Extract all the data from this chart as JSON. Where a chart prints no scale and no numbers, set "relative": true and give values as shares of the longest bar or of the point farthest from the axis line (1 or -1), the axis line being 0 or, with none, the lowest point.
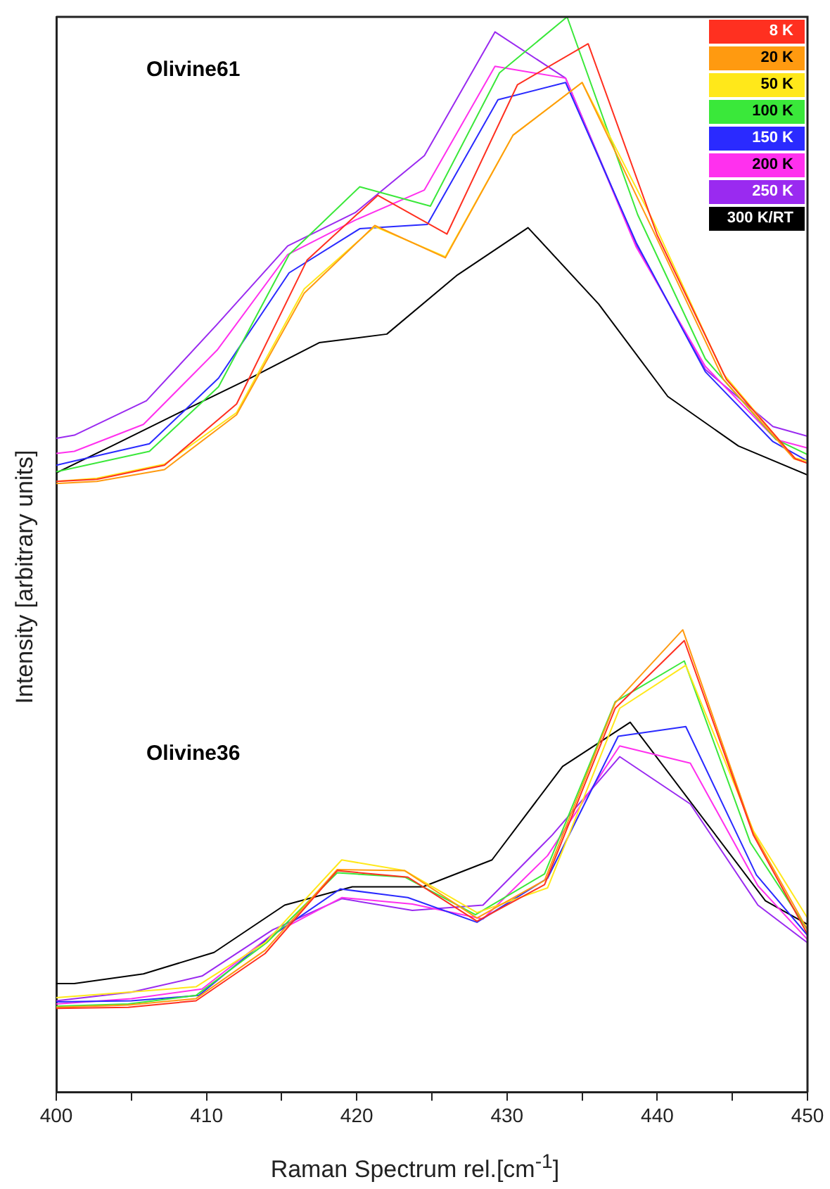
{
  "chart_data": {
    "type": "line",
    "relative": true,
    "xlabel": "Raman Spectrum rel.[cm$^{-1}$]",
    "ylabel": "Intensity [arbitrary units]",
    "xlim": [
      400,
      450
    ],
    "xticks": [
      400,
      {
        "value": 405,
        "label": null
      },
      410,
      {
        "value": 415,
        "label": null
      },
      420,
      {
        "value": 425,
        "label": null
      },
      430,
      {
        "value": 435,
        "label": null
      },
      440,
      {
        "value": 445,
        "label": null
      },
      450
    ],
    "legend": "top right",
    "grid": false,
    "marker": "none",
    "line_style": "solid",
    "annotations": [
      "Olivine61",
      "Olivine36"
    ],
    "series": [
      {
        "name": "8 K",
        "color": "#ff3020",
        "x": [
          400,
          402.7,
          407.2,
          412.0,
          416.7,
          421.4,
          426.0,
          430.7,
          435.4,
          440.0,
          444.6,
          449.2,
          450
        ],
        "values": [
          0.568,
          0.57,
          0.583,
          0.64,
          0.774,
          0.834,
          0.798,
          0.937,
          0.975,
          0.797,
          0.663,
          0.589,
          0.585
        ]
      },
      {
        "name": "20 K",
        "color": "#ff9a10",
        "x": [
          400,
          402.7,
          407.2,
          412.0,
          416.5,
          421.2,
          425.9,
          430.4,
          435.0,
          439.7,
          444.4,
          449.1,
          450
        ],
        "values": [
          0.566,
          0.568,
          0.579,
          0.63,
          0.743,
          0.806,
          0.776,
          0.89,
          0.939,
          0.802,
          0.663,
          0.589,
          0.585
        ]
      },
      {
        "name": "50 K",
        "color": "#ffe81a",
        "x": [
          400,
          402.7,
          407.2,
          412.0,
          416.5,
          421.2,
          425.9,
          430.4,
          435.0,
          439.7,
          444.4,
          449.1,
          450
        ],
        "values": [
          0.568,
          0.571,
          0.584,
          0.632,
          0.747,
          0.805,
          0.777,
          0.89,
          0.939,
          0.811,
          0.668,
          0.59,
          0.587
        ]
      },
      {
        "name": "100 K",
        "color": "#3ae83a",
        "x": [
          400,
          406.2,
          410.8,
          415.5,
          420.2,
          424.9,
          429.5,
          434.0,
          438.7,
          443.2,
          447.9,
          450
        ],
        "values": [
          0.577,
          0.596,
          0.656,
          0.779,
          0.842,
          0.824,
          0.948,
          1.0,
          0.816,
          0.682,
          0.607,
          0.593
        ]
      },
      {
        "name": "150 K",
        "color": "#2a2aff",
        "x": [
          400,
          401.2,
          406.2,
          410.8,
          415.5,
          420.2,
          424.7,
          429.4,
          433.9,
          438.6,
          443.2,
          447.7,
          450
        ],
        "values": [
          0.583,
          0.587,
          0.603,
          0.664,
          0.762,
          0.803,
          0.807,
          0.923,
          0.939,
          0.79,
          0.67,
          0.605,
          0.587
        ]
      },
      {
        "name": "200 K",
        "color": "#ff30ee",
        "x": [
          400,
          401.2,
          405.8,
          410.7,
          415.4,
          419.9,
          424.5,
          429.2,
          433.9,
          438.6,
          443.2,
          447.9,
          450
        ],
        "values": [
          0.594,
          0.596,
          0.621,
          0.69,
          0.779,
          0.811,
          0.839,
          0.954,
          0.943,
          0.786,
          0.675,
          0.607,
          0.599
        ]
      },
      {
        "name": "250 K",
        "color": "#9a2af0",
        "x": [
          400,
          401.2,
          406.0,
          410.7,
          415.4,
          419.9,
          424.5,
          429.2,
          433.9,
          438.6,
          443.2,
          447.7,
          450
        ],
        "values": [
          0.608,
          0.611,
          0.643,
          0.714,
          0.787,
          0.818,
          0.871,
          0.986,
          0.943,
          0.788,
          0.672,
          0.619,
          0.61
        ]
      },
      {
        "name": "300 K/RT",
        "color": "#000000",
        "x": [
          400,
          403.7,
          408.2,
          412.9,
          417.5,
          422.0,
          426.7,
          431.4,
          436.1,
          440.7,
          445.4,
          450
        ],
        "values": [
          0.576,
          0.601,
          0.632,
          0.664,
          0.697,
          0.705,
          0.76,
          0.804,
          0.733,
          0.647,
          0.601,
          0.574
        ]
      },
      {
        "color": "#ff3020",
        "x": [
          400,
          404.8,
          409.3,
          413.9,
          418.7,
          423.4,
          428.0,
          432.5,
          437.2,
          441.8,
          446.4,
          450
        ],
        "values": [
          0.078,
          0.079,
          0.085,
          0.129,
          0.206,
          0.2,
          0.159,
          0.193,
          0.357,
          0.42,
          0.239,
          0.147
        ]
      },
      {
        "color": "#ff9a10",
        "x": [
          400,
          404.8,
          409.3,
          413.9,
          418.7,
          423.2,
          428.0,
          432.5,
          437.2,
          441.7,
          446.4,
          450
        ],
        "values": [
          0.079,
          0.081,
          0.087,
          0.132,
          0.207,
          0.206,
          0.162,
          0.197,
          0.362,
          0.43,
          0.241,
          0.151
        ]
      },
      {
        "color": "#ffe81a",
        "x": [
          400,
          404.8,
          409.3,
          413.9,
          419.0,
          423.2,
          428.0,
          432.7,
          437.5,
          441.9,
          446.4,
          450
        ],
        "values": [
          0.088,
          0.093,
          0.098,
          0.139,
          0.216,
          0.206,
          0.167,
          0.19,
          0.357,
          0.397,
          0.243,
          0.162
        ]
      },
      {
        "color": "#3ae83a",
        "x": [
          400,
          404.8,
          409.3,
          414.0,
          418.7,
          423.2,
          427.9,
          432.5,
          437.2,
          441.8,
          446.2,
          450
        ],
        "values": [
          0.08,
          0.082,
          0.09,
          0.139,
          0.204,
          0.2,
          0.165,
          0.203,
          0.363,
          0.401,
          0.232,
          0.151
        ]
      },
      {
        "color": "#2a2aff",
        "x": [
          400,
          405.0,
          409.5,
          414.2,
          418.9,
          423.4,
          428.0,
          432.7,
          437.4,
          441.9,
          446.6,
          450
        ],
        "values": [
          0.084,
          0.085,
          0.09,
          0.144,
          0.189,
          0.181,
          0.158,
          0.199,
          0.331,
          0.34,
          0.202,
          0.146
        ]
      },
      {
        "color": "#ff30ee",
        "x": [
          400,
          405.0,
          409.7,
          414.4,
          419.0,
          423.7,
          428.4,
          432.7,
          437.5,
          442.2,
          446.7,
          450
        ],
        "values": [
          0.082,
          0.087,
          0.096,
          0.147,
          0.181,
          0.175,
          0.161,
          0.22,
          0.322,
          0.306,
          0.192,
          0.142
        ]
      },
      {
        "color": "#9a2af0",
        "x": [
          400,
          405.0,
          409.7,
          414.4,
          419.0,
          423.7,
          428.4,
          433.0,
          437.5,
          442.2,
          446.7,
          450
        ],
        "values": [
          0.085,
          0.093,
          0.108,
          0.151,
          0.18,
          0.169,
          0.174,
          0.239,
          0.312,
          0.268,
          0.174,
          0.139
        ]
      },
      {
        "color": "#000000",
        "x": [
          400,
          401.2,
          405.8,
          410.5,
          415.2,
          419.7,
          424.4,
          429.0,
          433.7,
          438.2,
          447.2,
          450
        ],
        "values": [
          0.101,
          0.101,
          0.11,
          0.13,
          0.174,
          0.191,
          0.191,
          0.216,
          0.303,
          0.344,
          0.178,
          0.156
        ]
      }
    ]
  }
}
